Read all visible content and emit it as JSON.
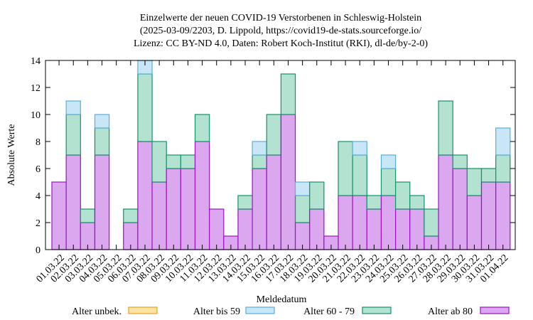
{
  "chart_data": {
    "type": "bar",
    "stacked": true,
    "title": [
      "Einzelwerte der neuen COVID-19 Verstorbenen in Schleswig-Holstein",
      "(2025-03-09/2203, D. Lippold, https://covid19-de-stats.sourceforge.io/",
      "Lizenz: CC BY-ND 4.0, Daten: Robert Koch-Institut (RKI), dl-de/by-2-0)"
    ],
    "xlabel": "Meldedatum",
    "ylabel": "Absolute Werte",
    "ylim": [
      0,
      14
    ],
    "yticks": [
      0,
      2,
      4,
      6,
      8,
      10,
      12,
      14
    ],
    "grid": false,
    "legend_position": "bottom",
    "categories": [
      "01.03.22",
      "02.03.22",
      "03.03.22",
      "04.03.22",
      "05.03.22",
      "06.03.22",
      "07.03.22",
      "08.03.22",
      "09.03.22",
      "10.03.22",
      "11.03.22",
      "12.03.22",
      "13.03.22",
      "14.03.22",
      "15.03.22",
      "16.03.22",
      "17.03.22",
      "18.03.22",
      "19.03.22",
      "20.03.22",
      "21.03.22",
      "22.03.22",
      "23.03.22",
      "24.03.22",
      "25.03.22",
      "26.03.22",
      "27.03.22",
      "28.03.22",
      "29.03.22",
      "30.03.22",
      "31.03.22",
      "01.04.22"
    ],
    "bar_slots": [
      {
        "cat": 0
      },
      {
        "cat": 1
      },
      {
        "cat": 2
      },
      {
        "cat": 3
      },
      {
        "cat": null
      },
      {
        "cat": 5
      },
      {
        "cat": 6
      },
      {
        "cat": 7
      },
      {
        "cat": 8
      },
      {
        "cat": 9
      },
      {
        "cat": 10
      },
      {
        "cat": 11
      },
      {
        "cat": 12
      },
      {
        "cat": 13
      },
      {
        "cat": 14
      },
      {
        "cat": 15
      },
      {
        "cat": 16
      },
      {
        "cat": 17
      },
      {
        "cat": 18
      },
      {
        "cat": 19
      },
      {
        "cat": 20
      },
      {
        "cat": 21
      },
      {
        "cat": 22
      },
      {
        "cat": 23
      },
      {
        "cat": 24
      },
      {
        "cat": 25
      },
      {
        "cat": 26
      },
      {
        "cat": 27
      },
      {
        "cat": 28
      },
      {
        "cat": 29
      },
      {
        "cat": 30
      },
      {
        "cat": 31
      }
    ],
    "series": [
      {
        "name": "Alter ab 80",
        "fill": "#dba8ef",
        "stroke": "#9b12c4",
        "values": [
          5,
          7,
          2,
          7,
          0,
          2,
          8,
          5,
          6,
          6,
          8,
          3,
          1,
          3,
          6,
          7,
          10,
          2,
          3,
          1,
          4,
          4,
          3,
          4,
          3,
          3,
          1,
          7,
          6,
          4,
          5,
          5
        ]
      },
      {
        "name": "Alter 60 - 79",
        "fill": "#b3e2d1",
        "stroke": "#14936a",
        "values": [
          0,
          3,
          1,
          2,
          0,
          1,
          5,
          3,
          1,
          1,
          2,
          0,
          0,
          1,
          1,
          3,
          3,
          2,
          2,
          0,
          4,
          3,
          1,
          2,
          2,
          1,
          2,
          4,
          1,
          2,
          1,
          2
        ]
      },
      {
        "name": "Alter bis 59",
        "fill": "#c8e6f6",
        "stroke": "#5aaee0",
        "values": [
          0,
          1,
          0,
          1,
          0,
          0,
          1,
          0,
          0,
          0,
          0,
          0,
          0,
          0,
          1,
          0,
          0,
          1,
          0,
          0,
          0,
          1,
          0,
          1,
          0,
          0,
          0,
          0,
          0,
          0,
          0,
          2
        ]
      },
      {
        "name": "Alter unbek.",
        "fill": "#fbe3a8",
        "stroke": "#e5a420",
        "values": [
          0,
          0,
          0,
          0,
          0,
          0,
          0,
          0,
          0,
          0,
          0,
          0,
          0,
          0,
          0,
          0,
          0,
          0,
          0,
          0,
          0,
          0,
          0,
          0,
          0,
          0,
          0,
          0,
          0,
          0,
          0,
          0
        ]
      }
    ],
    "legend_order": [
      "Alter unbek.",
      "Alter bis 59",
      "Alter 60 - 79",
      "Alter ab 80"
    ]
  }
}
